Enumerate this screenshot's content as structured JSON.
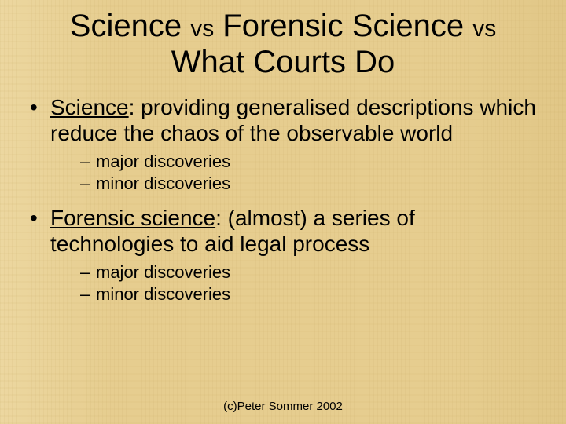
{
  "title": {
    "line1_a": "Science ",
    "line1_vs1": "vs",
    "line1_b": " Forensic Science ",
    "line1_vs2": "vs",
    "line2": "What Courts Do"
  },
  "bullets": [
    {
      "term": "Science",
      "rest": ":  providing generalised descriptions which reduce the chaos of the observable world",
      "sub": [
        "major discoveries",
        "minor discoveries"
      ]
    },
    {
      "term": "Forensic science",
      "rest": ":  (almost) a series of technologies to aid legal process",
      "sub": [
        "major discoveries",
        "minor discoveries"
      ]
    }
  ],
  "footer": "(c)Peter Sommer 2002",
  "colors": {
    "background_base": "#e6cd8f",
    "text": "#000000"
  },
  "typography": {
    "font_family": "Arial",
    "title_fontsize_pt": 40,
    "title_vs_fontsize_pt": 30,
    "bullet_fontsize_pt": 28,
    "subbullet_fontsize_pt": 22,
    "footer_fontsize_pt": 15
  }
}
